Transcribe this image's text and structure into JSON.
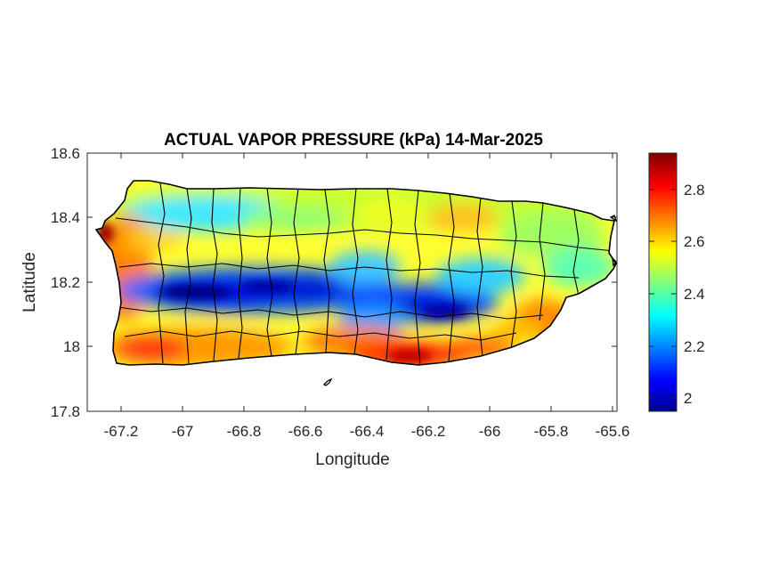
{
  "title": "ACTUAL VAPOR PRESSURE (kPa) 14-Mar-2025",
  "xlabel": "Longitude",
  "ylabel": "Latitude",
  "xticks": [
    "-67.2",
    "-67",
    "-66.8",
    "-66.6",
    "-66.4",
    "-66.2",
    "-66",
    "-65.8",
    "-65.6"
  ],
  "yticks": [
    "18.6",
    "18.4",
    "18.2",
    "18",
    "17.8"
  ],
  "colorbar": {
    "ticks": [
      "2.8",
      "2.6",
      "2.4",
      "2.2",
      "2"
    ],
    "range": [
      1.95,
      2.95
    ],
    "colormap": "jet",
    "colors": [
      "#00008f",
      "#0000ff",
      "#00ffff",
      "#ffff00",
      "#ff0000",
      "#800000"
    ]
  },
  "chart_data": {
    "type": "heatmap",
    "title": "ACTUAL VAPOR PRESSURE (kPa) 14-Mar-2025",
    "xlabel": "Longitude",
    "ylabel": "Latitude",
    "xlim": [
      -67.3,
      -65.58
    ],
    "ylim": [
      17.8,
      18.6
    ],
    "xticks": [
      -67.2,
      -67,
      -66.8,
      -66.6,
      -66.4,
      -66.2,
      -66,
      -65.8,
      -65.6
    ],
    "yticks": [
      17.8,
      18,
      18.2,
      18.4,
      18.6
    ],
    "clim": [
      1.95,
      2.95
    ],
    "colorbar_ticks": [
      2,
      2.2,
      2.4,
      2.6,
      2.8
    ],
    "region": "Puerto Rico municipalities",
    "observations": [
      {
        "lon": -67.25,
        "lat": 18.36,
        "value": 2.9
      },
      {
        "lon": -67.15,
        "lat": 18.27,
        "value": 2.7
      },
      {
        "lon": -67.1,
        "lat": 18.43,
        "value": 2.35
      },
      {
        "lon": -66.95,
        "lat": 18.16,
        "value": 1.98
      },
      {
        "lon": -66.85,
        "lat": 18.2,
        "value": 2.0
      },
      {
        "lon": -66.65,
        "lat": 18.18,
        "value": 2.05
      },
      {
        "lon": -66.55,
        "lat": 18.18,
        "value": 2.05
      },
      {
        "lon": -66.8,
        "lat": 18.42,
        "value": 2.4
      },
      {
        "lon": -66.5,
        "lat": 18.44,
        "value": 2.5
      },
      {
        "lon": -66.35,
        "lat": 18.26,
        "value": 2.3
      },
      {
        "lon": -66.2,
        "lat": 18.38,
        "value": 2.65
      },
      {
        "lon": -66.15,
        "lat": 18.13,
        "value": 2.05
      },
      {
        "lon": -66.05,
        "lat": 18.1,
        "value": 2.15
      },
      {
        "lon": -66.28,
        "lat": 17.97,
        "value": 2.9
      },
      {
        "lon": -66.5,
        "lat": 18.0,
        "value": 2.75
      },
      {
        "lon": -67.05,
        "lat": 18.02,
        "value": 2.8
      },
      {
        "lon": -65.95,
        "lat": 18.38,
        "value": 2.5
      },
      {
        "lon": -65.75,
        "lat": 18.3,
        "value": 2.45
      },
      {
        "lon": -65.72,
        "lat": 18.1,
        "value": 2.7
      },
      {
        "lon": -65.85,
        "lat": 18.05,
        "value": 2.65
      }
    ]
  }
}
